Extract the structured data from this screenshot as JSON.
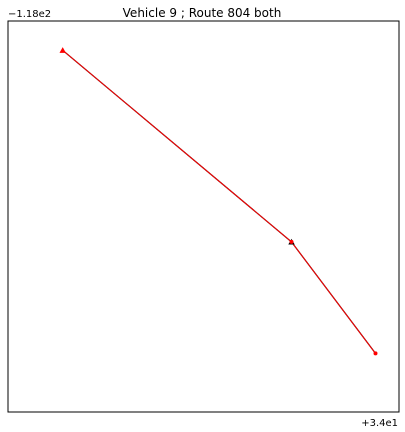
{
  "chart_data": {
    "type": "line",
    "title": "Vehicle 9 ; Route 804 both",
    "xlabel": "",
    "ylabel": "",
    "x_offset_label": "+3.4e1",
    "y_offset_label": "−1.18e2",
    "xlim": [
      0,
      1
    ],
    "ylim": [
      0,
      1
    ],
    "grid": false,
    "legend": "none",
    "colors": {
      "route": "#ff0000",
      "path": "#000000",
      "marker_red": "#ff0000",
      "marker_black": "#000000"
    },
    "series": [
      {
        "points": [
          {
            "x": 0.14,
            "y": 0.925
          },
          {
            "x": 0.725,
            "y": 0.435
          },
          {
            "x": 0.94,
            "y": 0.15
          }
        ]
      }
    ],
    "markers": [
      {
        "x": 0.14,
        "y": 0.925,
        "shape": "triangle",
        "color": "red"
      },
      {
        "x": 0.725,
        "y": 0.435,
        "shape": "triangle",
        "color": "black"
      },
      {
        "x": 0.725,
        "y": 0.435,
        "shape": "circle",
        "color": "red"
      },
      {
        "x": 0.94,
        "y": 0.15,
        "shape": "circle",
        "color": "red"
      }
    ]
  }
}
